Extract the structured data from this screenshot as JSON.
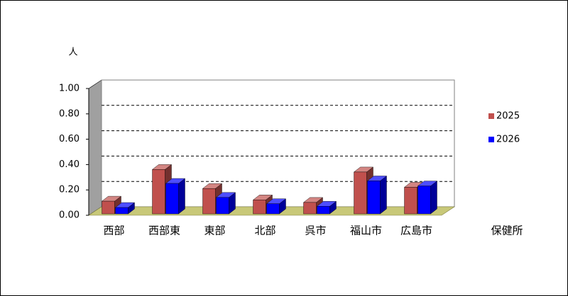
{
  "chart_data": {
    "type": "bar3d",
    "y_label": "人",
    "x_label": "保健所",
    "categories": [
      "西部",
      "西部東",
      "東部",
      "北部",
      "呉市",
      "福山市",
      "広島市"
    ],
    "series": [
      {
        "name": "2025",
        "color": "#c0504d",
        "values": [
          0.1,
          0.35,
          0.2,
          0.11,
          0.09,
          0.33,
          0.21
        ]
      },
      {
        "name": "2026",
        "color": "#0000ff",
        "values": [
          0.05,
          0.24,
          0.13,
          0.08,
          0.06,
          0.26,
          0.22
        ]
      }
    ],
    "ylim": [
      0,
      1
    ],
    "yticks": [
      {
        "value": 0,
        "label": "0.00"
      },
      {
        "value": 0.2,
        "label": "0.20"
      },
      {
        "value": 0.4,
        "label": "0.40"
      },
      {
        "value": 0.6,
        "label": "0.60"
      },
      {
        "value": 0.8,
        "label": "0.80"
      },
      {
        "value": 1,
        "label": "1.00"
      }
    ],
    "grid": true,
    "legend": "right"
  }
}
